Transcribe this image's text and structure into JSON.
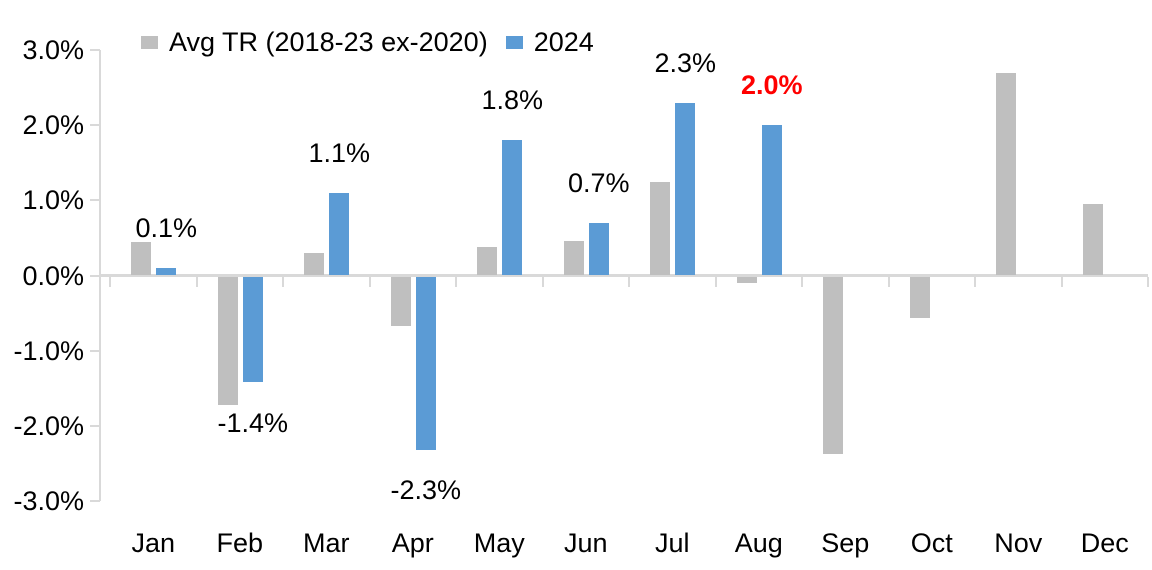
{
  "chart_data": {
    "type": "bar",
    "title": "",
    "categories": [
      "Jan",
      "Feb",
      "Mar",
      "Apr",
      "May",
      "Jun",
      "Jul",
      "Aug",
      "Sep",
      "Oct",
      "Nov",
      "Dec"
    ],
    "series": [
      {
        "name": "Avg TR (2018-23 ex-2020)",
        "color": "#bfbfbf",
        "values": [
          0.45,
          -1.7,
          0.3,
          -0.65,
          0.38,
          0.46,
          1.25,
          -0.08,
          -2.35,
          -0.55,
          2.7,
          0.95
        ]
      },
      {
        "name": "2024",
        "color": "#5b9bd5",
        "values": [
          0.1,
          -1.4,
          1.1,
          -2.3,
          1.8,
          0.7,
          2.3,
          2.0,
          null,
          null,
          null,
          null
        ],
        "data_labels": [
          "0.1%",
          "-1.4%",
          "1.1%",
          "-2.3%",
          "1.8%",
          "0.7%",
          "2.3%",
          "2.0%",
          null,
          null,
          null,
          null
        ],
        "label_highlight": {
          "index": 7,
          "color": "#ff0000",
          "bold": true
        }
      }
    ],
    "y_axis": {
      "min": -3,
      "max": 3,
      "step": 1,
      "tick_labels": [
        "3.0%",
        "2.0%",
        "1.0%",
        "0.0%",
        "-1.0%",
        "-2.0%",
        "-3.0%"
      ],
      "tick_values": [
        3,
        2,
        1,
        0,
        -1,
        -2,
        -3
      ],
      "unit": "%",
      "grid": false
    },
    "legend": {
      "position": "top",
      "entries": [
        "Avg TR (2018-23 ex-2020)",
        "2024"
      ]
    }
  },
  "colors": {
    "axis_line": "#d9d9d9",
    "text": "#000000",
    "background": "#ffffff",
    "series_avg": "#bfbfbf",
    "series_2024": "#5b9bd5",
    "highlight_label": "#ff0000"
  }
}
